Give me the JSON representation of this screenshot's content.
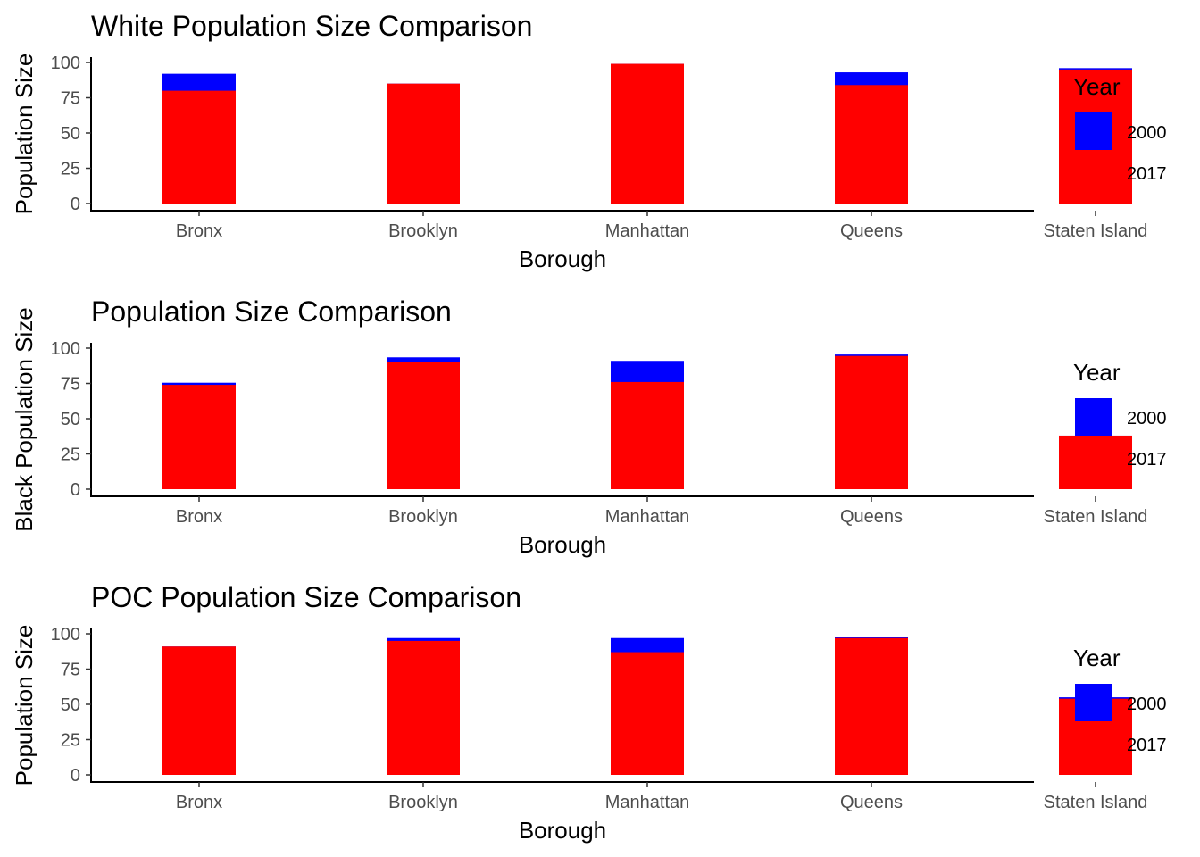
{
  "legend": {
    "title": "Year",
    "entries": [
      {
        "label": "2000",
        "color": "#0000FF"
      },
      {
        "label": "2017",
        "color": "#FF0000"
      }
    ]
  },
  "chart_data": [
    {
      "type": "bar",
      "title": "White Population Size Comparison",
      "xlabel": "Borough",
      "ylabel": "Population Size",
      "categories": [
        "Bronx",
        "Brooklyn",
        "Manhattan",
        "Queens",
        "Staten Island"
      ],
      "ylim": [
        0,
        100
      ],
      "yticks": [
        "0",
        "25",
        "50",
        "75",
        "100"
      ],
      "series": [
        {
          "name": "2000",
          "color": "#0000FF",
          "values": [
            92,
            85,
            99,
            93,
            96
          ]
        },
        {
          "name": "2017",
          "color": "#FF0000",
          "values": [
            80,
            85,
            99,
            84,
            95
          ]
        }
      ],
      "grid": false,
      "legend_position": "right"
    },
    {
      "type": "bar",
      "title": "Population Size Comparison",
      "xlabel": "Borough",
      "ylabel": "Black Population Size",
      "categories": [
        "Bronx",
        "Brooklyn",
        "Manhattan",
        "Queens",
        "Staten Island"
      ],
      "ylim": [
        0,
        100
      ],
      "yticks": [
        "0",
        "25",
        "50",
        "75",
        "100"
      ],
      "series": [
        {
          "name": "2000",
          "color": "#0000FF",
          "values": [
            75.5,
            93.5,
            91,
            95.5,
            38
          ]
        },
        {
          "name": "2017",
          "color": "#FF0000",
          "values": [
            74,
            90,
            76,
            94.5,
            38
          ]
        }
      ],
      "grid": false,
      "legend_position": "right"
    },
    {
      "type": "bar",
      "title": "POC Population Size Comparison",
      "xlabel": "Borough",
      "ylabel": "Population Size",
      "categories": [
        "Bronx",
        "Brooklyn",
        "Manhattan",
        "Queens",
        "Staten Island"
      ],
      "ylim": [
        0,
        100
      ],
      "yticks": [
        "0",
        "25",
        "50",
        "75",
        "100"
      ],
      "series": [
        {
          "name": "2000",
          "color": "#0000FF",
          "values": [
            91,
            97,
            97,
            98,
            55
          ]
        },
        {
          "name": "2017",
          "color": "#FF0000",
          "values": [
            91,
            95,
            87,
            97,
            54
          ]
        }
      ],
      "grid": false,
      "legend_position": "right"
    }
  ]
}
